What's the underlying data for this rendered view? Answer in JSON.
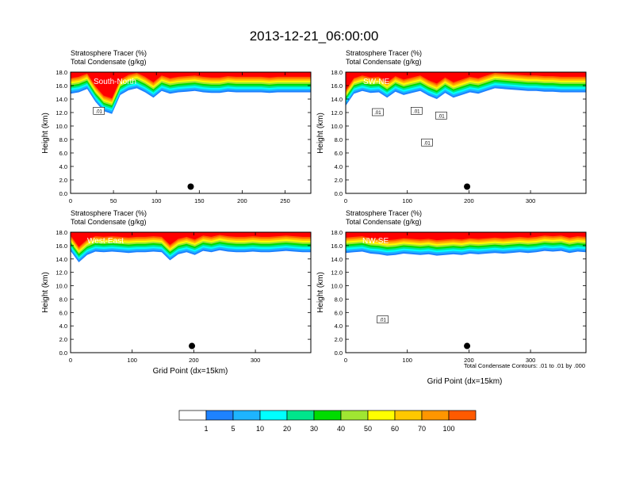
{
  "figure": {
    "title": "2013-12-21_06:00:00",
    "contour_note": "Total Condensate Contours: .01 to .01 by .000"
  },
  "colorbar": {
    "labels": [
      "1",
      "5",
      "10",
      "20",
      "30",
      "40",
      "50",
      "60",
      "70",
      "100"
    ],
    "colors": [
      "#ffffff",
      "#1e82ff",
      "#1eb4ff",
      "#00ffff",
      "#00e68c",
      "#00dc00",
      "#a0e632",
      "#ffff00",
      "#ffc800",
      "#ff9600",
      "#ff5a00",
      "#ff0000"
    ]
  },
  "chart_data": [
    {
      "type": "heatmap",
      "panel_label": "South-North",
      "title_lines": [
        "Stratosphere Tracer   (%)",
        "Total Condensate   (g/kg)"
      ],
      "ylabel": "Height (km)",
      "xlabel": "",
      "xlim": [
        0,
        280
      ],
      "ylim": [
        0,
        18
      ],
      "xticks": [
        "0",
        "50",
        "100",
        "150",
        "200",
        "250"
      ],
      "xtick_values": [
        0,
        50,
        100,
        150,
        200,
        250
      ],
      "yticks": [
        "0.0",
        "2.0",
        "4.0",
        "6.0",
        "8.0",
        "10.0",
        "12.0",
        "14.0",
        "16.0",
        "18.0"
      ],
      "tropopause_km": [
        14.8,
        15.0,
        15.5,
        13.6,
        12.2,
        11.8,
        14.6,
        15.3,
        15.6,
        15.0,
        14.2,
        15.2,
        14.8,
        15.0,
        15.1,
        15.2,
        15.0,
        14.9,
        14.9,
        15.1,
        15.0,
        15.0,
        15.0,
        15.0,
        14.9,
        15.0,
        15.0,
        15.0,
        15.0,
        15.0
      ],
      "marker": {
        "x": 140,
        "y": 1.0
      },
      "contour_labels": [
        {
          "text": ".01",
          "x": 33,
          "y": 12.2
        }
      ]
    },
    {
      "type": "heatmap",
      "panel_label": "SW-NE",
      "title_lines": [
        "Stratosphere Tracer   (%)",
        "Total Condensate   (g/kg)"
      ],
      "ylabel": "Height (km)",
      "xlabel": "",
      "xlim": [
        0,
        390
      ],
      "ylim": [
        0,
        18
      ],
      "xticks": [
        "0",
        "100",
        "200",
        "300"
      ],
      "xtick_values": [
        0,
        100,
        200,
        300
      ],
      "yticks": [
        "0.0",
        "2.0",
        "4.0",
        "6.0",
        "8.0",
        "10.0",
        "12.0",
        "14.0",
        "16.0",
        "18.0"
      ],
      "tropopause_km": [
        13.0,
        14.8,
        15.2,
        14.9,
        15.0,
        14.2,
        15.1,
        14.6,
        14.9,
        15.2,
        14.5,
        14.0,
        14.9,
        14.2,
        14.6,
        15.0,
        14.8,
        15.2,
        15.6,
        15.5,
        15.4,
        15.3,
        15.2,
        15.2,
        15.1,
        15.1,
        15.0,
        15.0,
        15.0,
        15.0
      ],
      "marker": {
        "x": 197,
        "y": 1.0
      },
      "contour_labels": [
        {
          "text": ".01",
          "x": 52,
          "y": 12.0
        },
        {
          "text": ".01",
          "x": 115,
          "y": 12.2
        },
        {
          "text": ".01",
          "x": 155,
          "y": 11.5
        },
        {
          "text": ".01",
          "x": 132,
          "y": 7.5
        }
      ]
    },
    {
      "type": "heatmap",
      "panel_label": "West-East",
      "title_lines": [
        "Stratosphere Tracer   (%)",
        "Total Condensate   (g/kg)"
      ],
      "ylabel": "Height (km)",
      "xlabel": "Grid Point (dx=15km)",
      "xlim": [
        0,
        390
      ],
      "ylim": [
        0,
        18
      ],
      "xticks": [
        "0",
        "100",
        "200",
        "300"
      ],
      "xtick_values": [
        0,
        100,
        200,
        300
      ],
      "yticks": [
        "0.0",
        "2.0",
        "4.0",
        "6.0",
        "8.0",
        "10.0",
        "12.0",
        "14.0",
        "16.0",
        "18.0"
      ],
      "tropopause_km": [
        15.2,
        13.5,
        14.6,
        15.1,
        15.0,
        15.1,
        15.0,
        14.9,
        15.0,
        15.0,
        15.1,
        15.0,
        13.8,
        14.7,
        15.0,
        14.6,
        15.2,
        15.0,
        15.3,
        15.1,
        15.0,
        15.0,
        15.1,
        15.0,
        15.0,
        15.1,
        15.2,
        15.1,
        15.0,
        15.0
      ],
      "marker": {
        "x": 197,
        "y": 1.0
      },
      "contour_labels": []
    },
    {
      "type": "heatmap",
      "panel_label": "NW-SE",
      "title_lines": [
        "Stratosphere Tracer   (%)",
        "Total Condensate   (g/kg)"
      ],
      "ylabel": "Height (km)",
      "xlabel": "Grid Point (dx=15km)",
      "xlim": [
        0,
        390
      ],
      "ylim": [
        0,
        18
      ],
      "xticks": [
        "0",
        "100",
        "200",
        "300"
      ],
      "xtick_values": [
        0,
        100,
        200,
        300
      ],
      "yticks": [
        "0.0",
        "2.0",
        "4.0",
        "6.0",
        "8.0",
        "10.0",
        "12.0",
        "14.0",
        "16.0",
        "18.0"
      ],
      "tropopause_km": [
        14.9,
        15.0,
        15.1,
        14.8,
        14.7,
        14.5,
        14.6,
        14.8,
        14.7,
        14.6,
        14.7,
        14.5,
        14.6,
        14.7,
        14.6,
        14.8,
        14.7,
        14.8,
        14.9,
        14.8,
        14.9,
        15.0,
        14.9,
        15.0,
        15.2,
        15.1,
        15.2,
        14.9,
        15.1,
        15.0
      ],
      "marker": {
        "x": 197,
        "y": 1.0
      },
      "contour_labels": [
        {
          "text": ".01",
          "x": 60,
          "y": 4.9
        }
      ]
    }
  ]
}
